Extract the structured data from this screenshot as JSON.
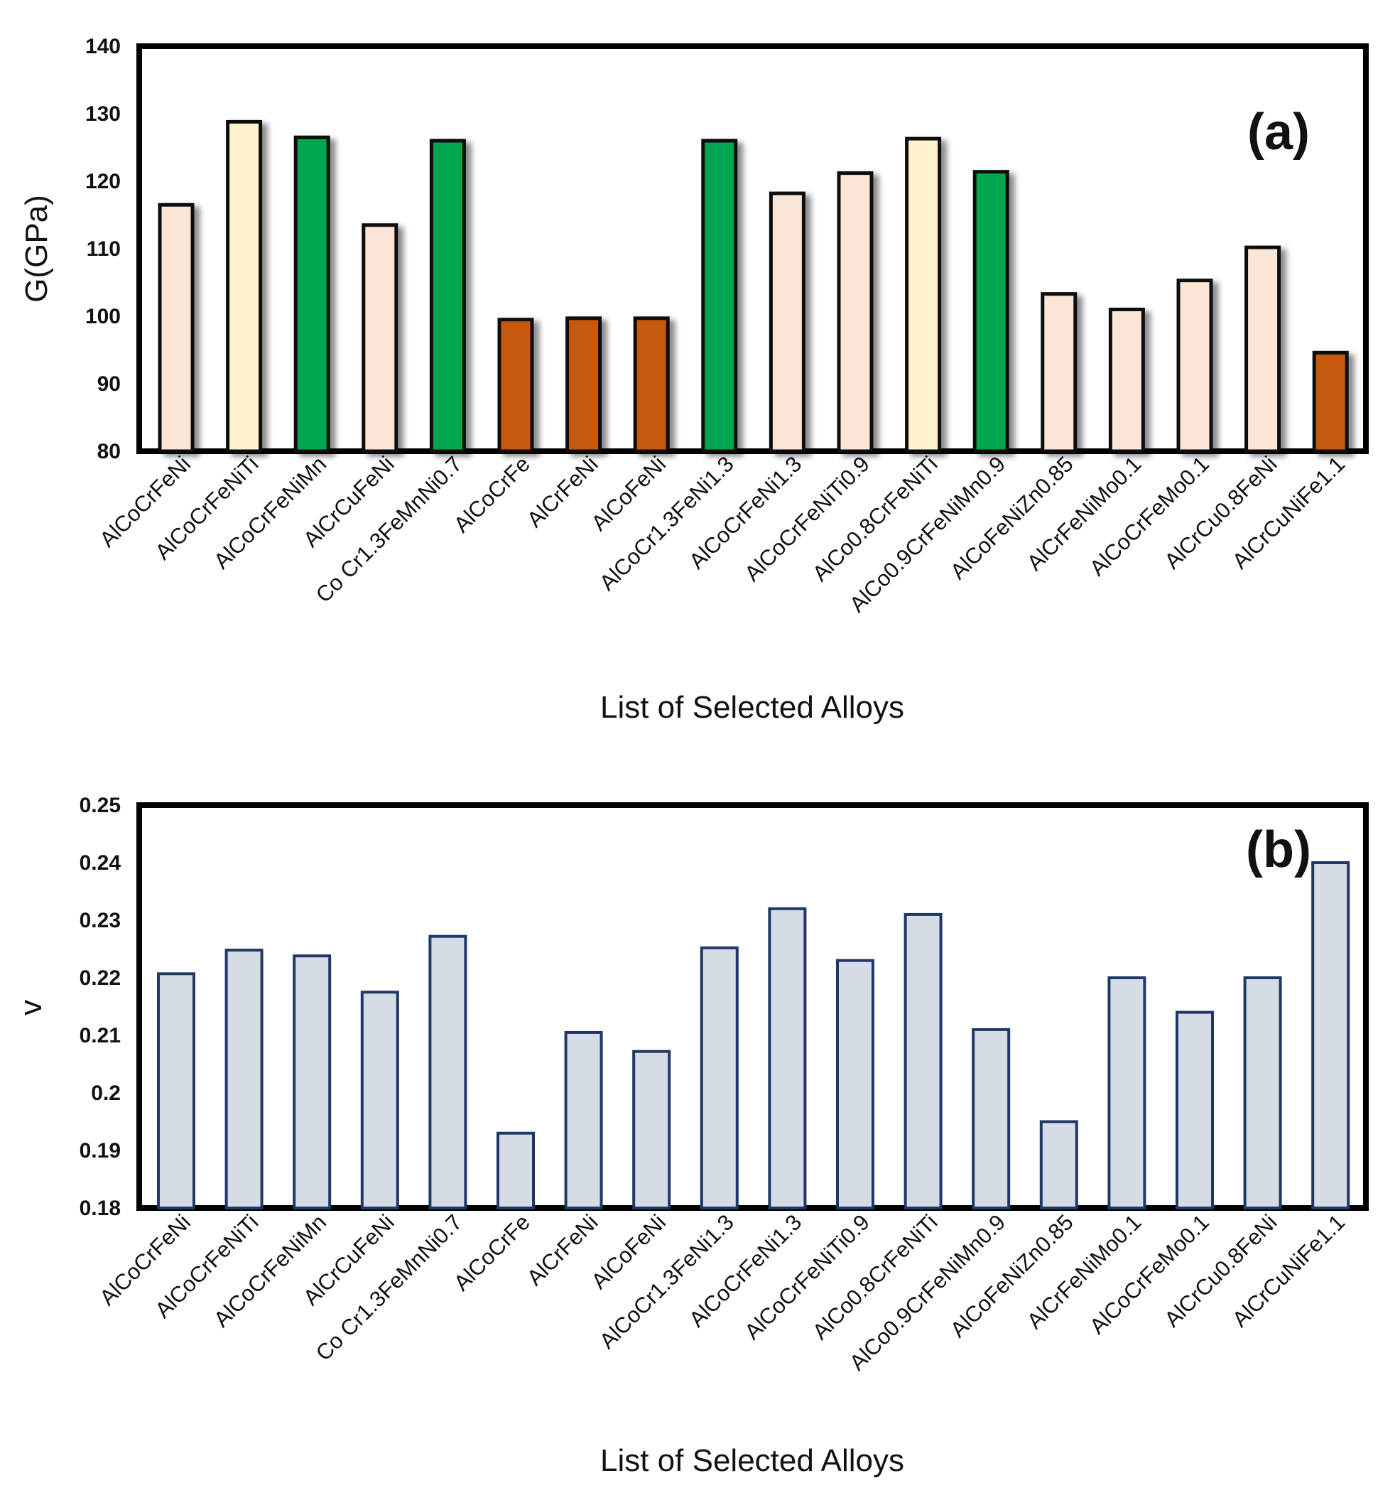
{
  "chart_data": [
    {
      "type": "bar",
      "panel_label": "(a)",
      "ylabel": "G(GPa)",
      "xlabel": "List of Selected Alloys",
      "ylim": [
        80,
        140
      ],
      "yticks": [
        "80",
        "90",
        "100",
        "110",
        "120",
        "130",
        "140"
      ],
      "yticks_values": [
        80,
        90,
        100,
        110,
        120,
        130,
        140
      ],
      "grid": false,
      "bar_outline_color": "#111111",
      "categories": [
        "AlCoCrFeNi",
        "AlCoCrFeNiTi",
        "AlCoCrFeNiMn",
        "AlCrCuFeNi",
        "Co Cr1.3FeMnNi0.7",
        "AlCoCrFe",
        "AlCrFeNi",
        "AlCoFeNi",
        "AlCoCr1.3FeNi1.3",
        "AlCoCrFeNi1.3",
        "AlCoCrFeNiTi0.9",
        "AlCo0.8CrFeNiTi",
        "AlCo0.9CrFeNiMn0.9",
        "AlCoFeNiZn0.85",
        "AlCrFeNiMo0.1",
        "AlCoCrFeMo0.1",
        "AlCrCu0.8FeNi",
        "AlCrCuNiFe1.1"
      ],
      "values": [
        116.5,
        128.8,
        126.5,
        113.5,
        126.0,
        99.5,
        99.7,
        99.7,
        126.0,
        118.2,
        121.2,
        126.3,
        121.4,
        103.3,
        101.0,
        105.3,
        110.2,
        94.6
      ],
      "bar_colors": [
        "#fbe5d6",
        "#fff2cc",
        "#00a550",
        "#fbe5d6",
        "#00a550",
        "#c55a11",
        "#c55a11",
        "#c55a11",
        "#00a550",
        "#fbe5d6",
        "#fbe5d6",
        "#fff2cc",
        "#00a550",
        "#fbe5d6",
        "#fbe5d6",
        "#fbe5d6",
        "#fbe5d6",
        "#c55a11"
      ]
    },
    {
      "type": "bar",
      "panel_label": "(b)",
      "ylabel": "v",
      "xlabel": "List of Selected Alloys",
      "ylim": [
        0.18,
        0.25
      ],
      "yticks": [
        "0.18",
        "0.19",
        "0.2",
        "0.21",
        "0.22",
        "0.23",
        "0.24",
        "0.25"
      ],
      "yticks_values": [
        0.18,
        0.19,
        0.2,
        0.21,
        0.22,
        0.23,
        0.24,
        0.25
      ],
      "grid": false,
      "bar_color": "#d6dce5",
      "bar_outline_color": "#1f3864",
      "categories": [
        "AlCoCrFeNi",
        "AlCoCrFeNiTi",
        "AlCoCrFeNiMn",
        "AlCrCuFeNi",
        "Co Cr1.3FeMnNi0.7",
        "AlCoCrFe",
        "AlCrFeNi",
        "AlCoFeNi",
        "AlCoCr1.3FeNi1.3",
        "AlCoCrFeNi1.3",
        "AlCoCrFeNiTi0.9",
        "AlCo0.8CrFeNiTi",
        "AlCo0.9CrFeNiMn0.9",
        "AlCoFeNiZn0.85",
        "AlCrFeNiMo0.1",
        "AlCoCrFeMo0.1",
        "AlCrCu0.8FeNi",
        "AlCrCuNiFe1.1"
      ],
      "values": [
        0.2207,
        0.2248,
        0.2238,
        0.2175,
        0.2272,
        0.193,
        0.2105,
        0.2072,
        0.2252,
        0.232,
        0.223,
        0.231,
        0.211,
        0.195,
        0.22,
        0.214,
        0.22,
        0.24
      ]
    }
  ]
}
